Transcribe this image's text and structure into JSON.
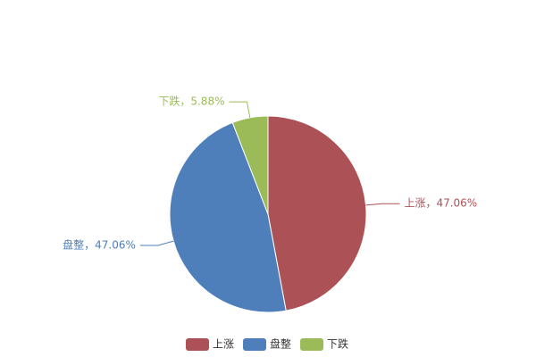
{
  "chart_data": {
    "type": "pie",
    "categories": [
      "上涨",
      "盘整",
      "下跌"
    ],
    "values": [
      47.06,
      47.06,
      5.88
    ],
    "value_labels": [
      "上涨，47.06%",
      "盘整，47.06%",
      "下跌，5.88%"
    ],
    "colors": [
      "#ac5256",
      "#4e7fbb",
      "#9bbb59"
    ],
    "legend": "bottom"
  }
}
